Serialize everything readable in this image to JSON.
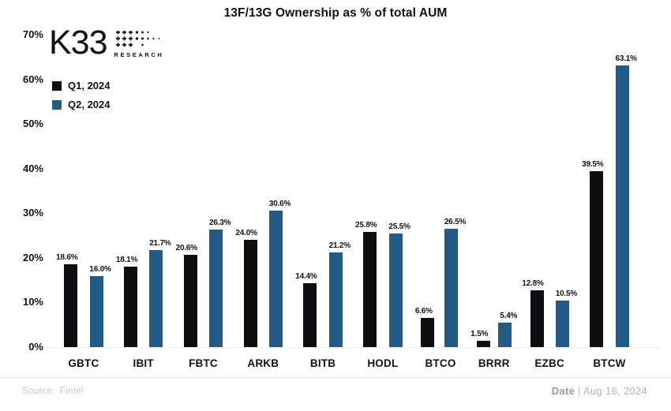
{
  "title": "13F/13G Ownership as % of total AUM",
  "logo": {
    "text": "K33",
    "subtext": "RESEARCH"
  },
  "legend": [
    {
      "label": "Q1, 2024",
      "color": "#0e0e10"
    },
    {
      "label": "Q2, 2024",
      "color": "#245b86"
    }
  ],
  "footer": {
    "source_label": "Source:",
    "source_value": "Fintel",
    "date_label": "Date",
    "date_value": "| Aug 16, 2024"
  },
  "colors": {
    "q1": "#0e0e10",
    "q2": "#245b86",
    "axis_line": "#ececee",
    "text": "#121212"
  },
  "chart_data": {
    "type": "bar",
    "title": "13F/13G Ownership as % of total AUM",
    "categories": [
      "GBTC",
      "IBIT",
      "FBTC",
      "ARKB",
      "BITB",
      "HODL",
      "BTCO",
      "BRRR",
      "EZBC",
      "BTCW"
    ],
    "series": [
      {
        "name": "Q1, 2024",
        "color": "#0e0e10",
        "values": [
          18.6,
          18.1,
          20.6,
          24.0,
          14.4,
          25.8,
          6.6,
          1.5,
          12.8,
          39.5
        ]
      },
      {
        "name": "Q2, 2024",
        "color": "#245b86",
        "values": [
          16.0,
          21.7,
          26.3,
          30.6,
          21.2,
          25.5,
          26.5,
          5.4,
          10.5,
          63.1
        ]
      }
    ],
    "xlabel": "",
    "ylabel": "",
    "ylim": [
      0,
      70
    ],
    "ytick_step": 10,
    "ytick_format": "percent",
    "grid": false,
    "legend_position": "top-left",
    "value_labels": true,
    "value_label_format": "one-decimal-percent"
  }
}
